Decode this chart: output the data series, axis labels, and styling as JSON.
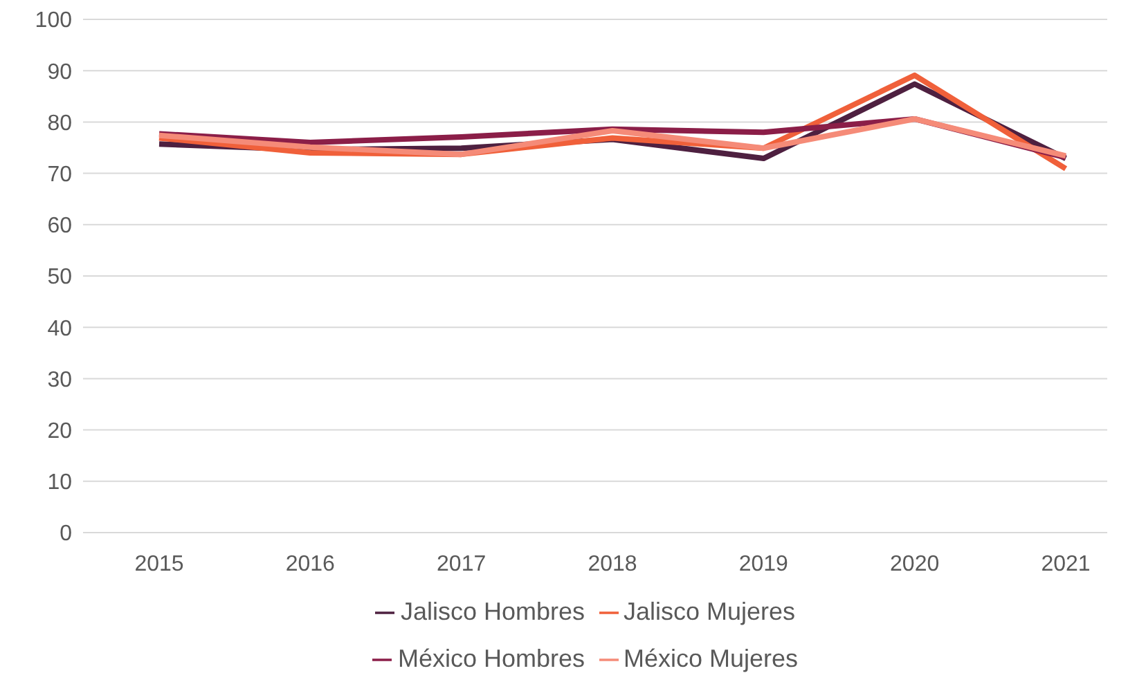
{
  "chart_data": {
    "type": "line",
    "categories": [
      "2015",
      "2016",
      "2017",
      "2018",
      "2019",
      "2020",
      "2021"
    ],
    "series": [
      {
        "name": "Jalisco Hombres",
        "color": "#4e2040",
        "values": [
          75.7,
          74.6,
          74.9,
          76.6,
          72.9,
          87.4,
          72.9
        ]
      },
      {
        "name": "Jalisco Mujeres",
        "color": "#f0603a",
        "values": [
          76.9,
          74.0,
          73.7,
          76.9,
          74.9,
          89.1,
          70.9
        ]
      },
      {
        "name": "México Hombres",
        "color": "#8b1e48",
        "values": [
          77.7,
          76.0,
          77.1,
          78.6,
          78.0,
          80.6,
          73.1
        ]
      },
      {
        "name": "México Mujeres",
        "color": "#f58b78",
        "values": [
          77.4,
          75.1,
          73.7,
          78.3,
          74.9,
          80.6,
          73.4
        ]
      }
    ],
    "ylim": [
      0,
      100
    ],
    "yticks": [
      0,
      10,
      20,
      30,
      40,
      50,
      60,
      70,
      80,
      90,
      100
    ],
    "grid": "y",
    "legend": "bottom",
    "marker": "none",
    "line_style": "solid"
  }
}
